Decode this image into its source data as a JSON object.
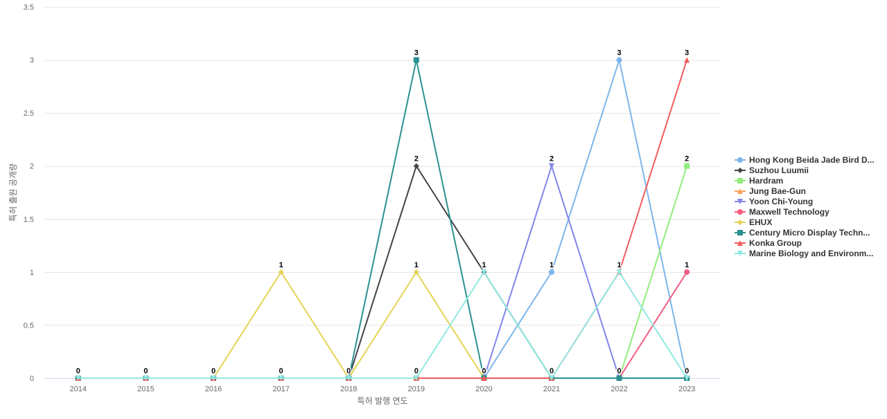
{
  "chart_data": {
    "type": "line",
    "xlabel": "특허 발행 연도",
    "ylabel": "특허 출원 공개량",
    "x": [
      "2014",
      "2015",
      "2016",
      "2017",
      "2018",
      "2019",
      "2020",
      "2021",
      "2022",
      "2023"
    ],
    "ylim": [
      0,
      3.5
    ],
    "yticks": [
      0,
      0.5,
      1,
      1.5,
      2,
      2.5,
      3,
      3.5
    ],
    "ytick_labels": [
      "0",
      "0.5",
      "1",
      "1.5",
      "2",
      "2.5",
      "3",
      "3.5"
    ],
    "grid": "horizontal",
    "legend_position": "right",
    "series": [
      {
        "name": "Hong Kong Beida Jade Bird D...",
        "color": "#7cb5ec",
        "marker": "circle",
        "values": [
          0,
          0,
          0,
          0,
          0,
          0,
          0,
          1,
          3,
          0
        ]
      },
      {
        "name": "Suzhou Luumii",
        "color": "#434348",
        "marker": "diamond",
        "values": [
          0,
          0,
          0,
          0,
          0,
          2,
          1,
          0,
          0,
          0
        ]
      },
      {
        "name": "Hardram",
        "color": "#90ed7d",
        "marker": "square",
        "values": [
          0,
          0,
          0,
          0,
          0,
          0,
          0,
          0,
          0,
          2
        ]
      },
      {
        "name": "Jung Bae-Gun",
        "color": "#f7a35c",
        "marker": "triangle",
        "values": [
          0,
          0,
          0,
          0,
          0,
          0,
          0,
          0,
          0,
          0
        ]
      },
      {
        "name": "Yoon Chi-Young",
        "color": "#8085e9",
        "marker": "triangle-down",
        "values": [
          0,
          0,
          0,
          0,
          0,
          0,
          0,
          2,
          0,
          0
        ]
      },
      {
        "name": "Maxwell Technology",
        "color": "#f15c80",
        "marker": "circle",
        "values": [
          0,
          0,
          0,
          0,
          0,
          0,
          0,
          0,
          0,
          1
        ]
      },
      {
        "name": "EHUX",
        "color": "#e4d354",
        "marker": "diamond",
        "values": [
          0,
          0,
          0,
          1,
          0,
          1,
          0,
          0,
          0,
          0
        ]
      },
      {
        "name": "Century Micro Display Techn...",
        "color": "#2b908f",
        "marker": "square",
        "values": [
          0,
          0,
          0,
          0,
          0,
          3,
          0,
          0,
          0,
          0
        ]
      },
      {
        "name": "Konka Group",
        "color": "#f45b5b",
        "marker": "triangle",
        "values": [
          0,
          0,
          0,
          0,
          0,
          0,
          0,
          0,
          1,
          3
        ]
      },
      {
        "name": "Marine Biology and Environm...",
        "color": "#91e8e1",
        "marker": "triangle-down",
        "values": [
          0,
          0,
          0,
          0,
          0,
          0,
          1,
          0,
          1,
          0
        ]
      }
    ],
    "data_labels": [
      {
        "x": "2014",
        "text": "0"
      },
      {
        "x": "2015",
        "text": "0"
      },
      {
        "x": "2016",
        "text": "0"
      },
      {
        "x": "2017",
        "text": "0"
      },
      {
        "x": "2017",
        "text": "1"
      },
      {
        "x": "2018",
        "text": "0"
      },
      {
        "x": "2019",
        "text": "0"
      },
      {
        "x": "2019",
        "text": "1"
      },
      {
        "x": "2019",
        "text": "2"
      },
      {
        "x": "2019",
        "text": "3"
      },
      {
        "x": "2020",
        "text": "0"
      },
      {
        "x": "2020",
        "text": "1"
      },
      {
        "x": "2021",
        "text": "0"
      },
      {
        "x": "2021",
        "text": "1"
      },
      {
        "x": "2021",
        "text": "2"
      },
      {
        "x": "2022",
        "text": "0"
      },
      {
        "x": "2022",
        "text": "1"
      },
      {
        "x": "2022",
        "text": "3"
      },
      {
        "x": "2023",
        "text": "0"
      },
      {
        "x": "2023",
        "text": "1"
      },
      {
        "x": "2023",
        "text": "2"
      },
      {
        "x": "2023",
        "text": "3"
      }
    ]
  }
}
